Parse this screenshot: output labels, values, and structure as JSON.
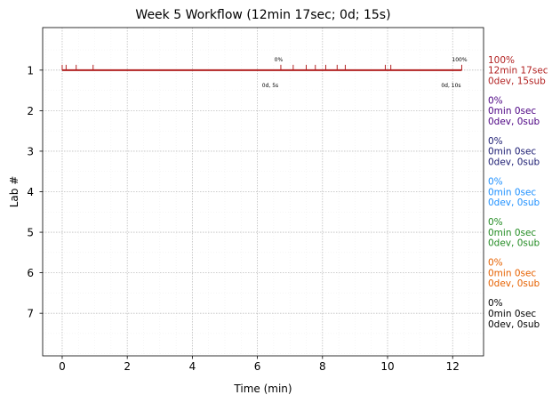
{
  "chart_data": {
    "type": "line",
    "title": "Week 5 Workflow (12min 17sec; 0d; 15s)",
    "xlabel": "Time (min)",
    "ylabel": "Lab #",
    "xlim": [
      -0.6,
      12.95
    ],
    "ylim": [
      8.05,
      -0.05
    ],
    "x_ticks": [
      0,
      2,
      4,
      6,
      8,
      10,
      12
    ],
    "y_ticks": [
      1,
      2,
      3,
      4,
      5,
      6,
      7
    ],
    "grid": true,
    "series": [
      {
        "lab": 1,
        "color": "#b22222",
        "x": [
          0.0,
          12.28
        ],
        "events": [
          0.0,
          0.12,
          0.43,
          0.95,
          6.72,
          7.1,
          7.5,
          7.78,
          8.1,
          8.45,
          8.7,
          9.93,
          10.1,
          12.28
        ],
        "annotations": [
          {
            "top": "0%",
            "bottom": "0d, 5s",
            "x": 6.72
          },
          {
            "top": "100%",
            "bottom": "0d, 10s",
            "x": 12.28
          }
        ]
      }
    ],
    "side_labels": [
      {
        "lab": 1,
        "color": "#b22222",
        "lines": [
          "100%",
          "12min 17sec",
          "0dev, 15sub"
        ]
      },
      {
        "lab": 2,
        "color": "#4b0082",
        "lines": [
          "0%",
          "0min 0sec",
          "0dev, 0sub"
        ]
      },
      {
        "lab": 3,
        "color": "#191970",
        "lines": [
          "0%",
          "0min 0sec",
          "0dev, 0sub"
        ]
      },
      {
        "lab": 4,
        "color": "#1e90ff",
        "lines": [
          "0%",
          "0min 0sec",
          "0dev, 0sub"
        ]
      },
      {
        "lab": 5,
        "color": "#228b22",
        "lines": [
          "0%",
          "0min 0sec",
          "0dev, 0sub"
        ]
      },
      {
        "lab": 6,
        "color": "#e66100",
        "lines": [
          "0%",
          "0min 0sec",
          "0dev, 0sub"
        ]
      },
      {
        "lab": 7,
        "color": "#000000",
        "lines": [
          "0%",
          "0min 0sec",
          "0dev, 0sub"
        ]
      }
    ]
  }
}
